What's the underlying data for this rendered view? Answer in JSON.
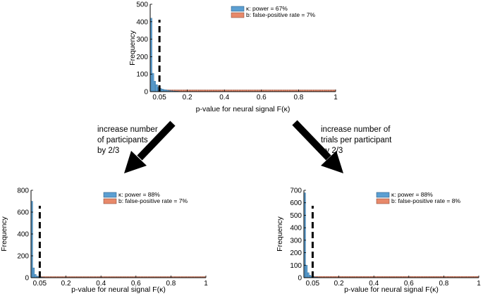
{
  "colors": {
    "blue": "#5b9fd2",
    "orange": "#e8896a",
    "threshold": "#000000"
  },
  "annotations": {
    "left": [
      "increase number",
      "of participants",
      "by 2/3"
    ],
    "right": [
      "increase number of",
      "trials per participant",
      "by 2/3"
    ]
  },
  "chart_data": [
    {
      "id": "top",
      "type": "bar",
      "xlabel": "p-value for neural signal F(κ)",
      "ylabel": "Frequency",
      "xlim": [
        0,
        1
      ],
      "ylim": [
        0,
        500
      ],
      "xticks": [
        0.05,
        0.2,
        0.4,
        0.6,
        0.8,
        1
      ],
      "xtick_labels": [
        "0.05",
        "0.2",
        "0.4",
        "0.6",
        "0.8",
        "1"
      ],
      "yticks": [
        0,
        100,
        200,
        300,
        400,
        500
      ],
      "ytick_labels": [
        "0",
        "100",
        "200",
        "300",
        "400",
        "500"
      ],
      "threshold": 0.05,
      "legend": [
        "κ: power = 67%",
        "b: false-positive rate = 7%"
      ],
      "bin_width": 0.01,
      "series_blue_first_bins": [
        420,
        105,
        60,
        40,
        25,
        20,
        15,
        12,
        10,
        8,
        6,
        5,
        4,
        3,
        3,
        2
      ],
      "series_blue_tail": 1,
      "series_orange": 10
    },
    {
      "id": "bottom-left",
      "type": "bar",
      "xlabel": "p-value for neural signal F(κ)",
      "ylabel": "Frequency",
      "xlim": [
        0,
        1
      ],
      "ylim": [
        0,
        800
      ],
      "xticks": [
        0.05,
        0.2,
        0.4,
        0.6,
        0.8,
        1
      ],
      "xtick_labels": [
        "0.05",
        "0.2",
        "0.4",
        "0.6",
        "0.8",
        "1"
      ],
      "yticks": [
        0,
        200,
        400,
        600,
        800
      ],
      "ytick_labels": [
        "0",
        "200",
        "400",
        "600",
        "800"
      ],
      "threshold": 0.05,
      "legend": [
        "κ: power = 88%",
        "b: false-positive rate = 7%"
      ],
      "bin_width": 0.01,
      "series_blue_first_bins": [
        700,
        90,
        30,
        15,
        10,
        6,
        4,
        3,
        2,
        2
      ],
      "series_blue_tail": 0.5,
      "series_orange": 10
    },
    {
      "id": "bottom-right",
      "type": "bar",
      "xlabel": "p-value for neural signal F(κ)",
      "ylabel": "Frequency",
      "xlim": [
        0,
        1
      ],
      "ylim": [
        0,
        700
      ],
      "xticks": [
        0.05,
        0.2,
        0.4,
        0.6,
        0.8,
        1
      ],
      "xtick_labels": [
        "0.05",
        "0.2",
        "0.4",
        "0.6",
        "0.8",
        "1"
      ],
      "yticks": [
        0,
        100,
        200,
        300,
        400,
        500,
        600,
        700
      ],
      "ytick_labels": [
        "0",
        "100",
        "200",
        "300",
        "400",
        "500",
        "600",
        "700"
      ],
      "threshold": 0.05,
      "legend": [
        "κ: power = 88%",
        "b: false-positive rate = 8%"
      ],
      "bin_width": 0.01,
      "series_blue_first_bins": [
        680,
        100,
        40,
        20,
        12,
        8,
        5,
        4,
        3,
        2
      ],
      "series_blue_tail": 0.5,
      "series_orange": 10
    }
  ]
}
